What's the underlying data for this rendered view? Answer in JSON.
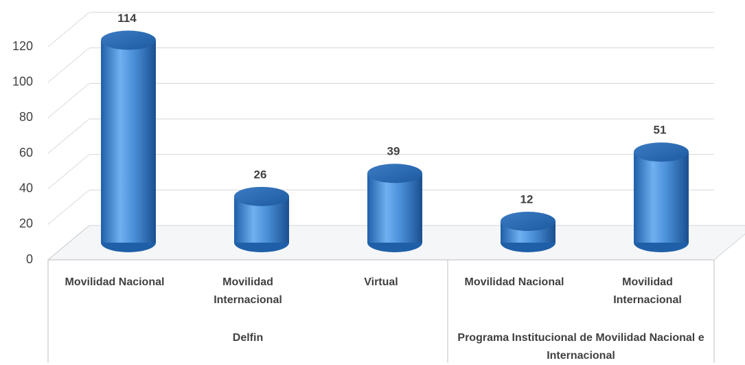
{
  "chart_data": {
    "type": "bar",
    "groups": [
      {
        "name": "Delfin",
        "categories": [
          "Movilidad Nacional",
          "Movilidad Internacional",
          "Virtual"
        ],
        "values": [
          114,
          26,
          39
        ]
      },
      {
        "name": "Programa Institucional de Movilidad Nacional e Internacional",
        "categories": [
          "Movilidad Nacional",
          "Movilidad Internacional"
        ],
        "values": [
          12,
          51
        ]
      }
    ],
    "color": "#4a8fd8",
    "ylim": [
      0,
      120
    ],
    "yticks": [
      0,
      20,
      40,
      60,
      80,
      100,
      120
    ],
    "grid": true
  }
}
